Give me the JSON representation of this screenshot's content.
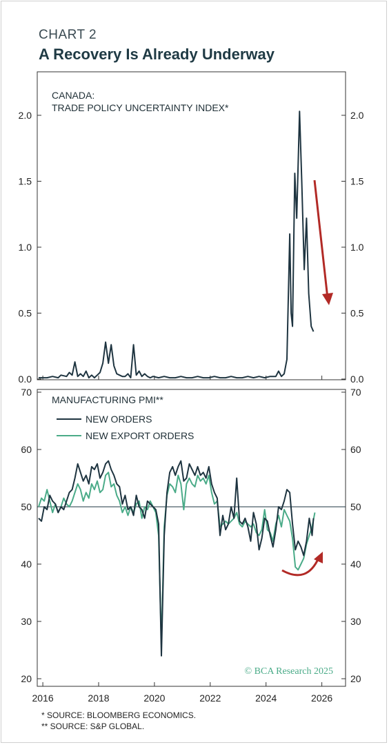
{
  "header": {
    "label": "CHART 2",
    "title": "A Recovery Is Already Underway"
  },
  "footnotes": [
    "*  SOURCE: BLOOMBERG ECONOMICS.",
    "** SOURCE: S&P GLOBAL."
  ],
  "watermark": "© BCA Research 2025",
  "colors": {
    "dark_line": "#1e3440",
    "green_line": "#4aab88",
    "arrow": "#b22a26",
    "axis": "#333333"
  },
  "chart_data": [
    {
      "type": "line",
      "title_lines": [
        "CANADA:",
        "TRADE POLICY UNCERTAINTY INDEX*"
      ],
      "ylim": [
        0,
        2.0
      ],
      "yticks": [
        "0.0",
        "0.5",
        "1.0",
        "1.5",
        "2.0"
      ],
      "xlim": [
        2015.85,
        2026.9
      ],
      "series": [
        {
          "x": [
            2015.9,
            2016.0,
            2016.2,
            2016.4,
            2016.6,
            2016.7,
            2016.9,
            2017.0,
            2017.1,
            2017.2,
            2017.3,
            2017.4,
            2017.5,
            2017.6,
            2017.7,
            2017.8,
            2017.9,
            2018.0,
            2018.1,
            2018.2,
            2018.3,
            2018.4,
            2018.5,
            2018.6,
            2018.7,
            2018.8,
            2018.9,
            2019.0,
            2019.1,
            2019.2,
            2019.3,
            2019.4,
            2019.5,
            2019.6,
            2019.7,
            2019.8,
            2019.9,
            2020.0,
            2020.2,
            2020.4,
            2020.6,
            2020.8,
            2021.0,
            2021.2,
            2021.4,
            2021.6,
            2021.8,
            2022.0,
            2022.2,
            2022.4,
            2022.6,
            2022.8,
            2023.0,
            2023.2,
            2023.4,
            2023.6,
            2023.8,
            2024.0,
            2024.2,
            2024.4,
            2024.5,
            2024.6,
            2024.7,
            2024.8,
            2024.9,
            2024.95,
            2025.0,
            2025.08,
            2025.15,
            2025.25,
            2025.33,
            2025.42,
            2025.5,
            2025.58,
            2025.67,
            2025.75
          ],
          "y": [
            0.01,
            0.01,
            0.01,
            0.02,
            0.01,
            0.03,
            0.02,
            0.05,
            0.03,
            0.13,
            0.02,
            0.04,
            0.02,
            0.06,
            0.01,
            0.03,
            0.01,
            0.03,
            0.05,
            0.12,
            0.28,
            0.12,
            0.26,
            0.1,
            0.04,
            0.03,
            0.02,
            0.02,
            0.04,
            0.01,
            0.26,
            0.03,
            0.06,
            0.02,
            0.04,
            0.02,
            0.01,
            0.02,
            0.01,
            0.02,
            0.01,
            0.01,
            0.02,
            0.01,
            0.01,
            0.02,
            0.01,
            0.01,
            0.02,
            0.01,
            0.01,
            0.02,
            0.01,
            0.01,
            0.02,
            0.01,
            0.02,
            0.01,
            0.02,
            0.02,
            0.06,
            0.02,
            0.04,
            0.15,
            1.1,
            0.5,
            0.4,
            1.56,
            1.22,
            2.03,
            1.5,
            0.83,
            1.22,
            0.65,
            0.4,
            0.36
          ]
        }
      ]
    },
    {
      "type": "line",
      "title": "MANUFACTURING PMI**",
      "ylim": [
        20,
        70
      ],
      "yticks": [
        "20",
        "30",
        "40",
        "50",
        "60",
        "70"
      ],
      "xlim": [
        2015.85,
        2026.9
      ],
      "xticks": [
        "2016",
        "2018",
        "2020",
        "2022",
        "2024",
        "2026"
      ],
      "reference_line": 50,
      "series": [
        {
          "name": "NEW ORDERS",
          "x": [
            2015.9,
            2016.0,
            2016.1,
            2016.2,
            2016.3,
            2016.4,
            2016.5,
            2016.6,
            2016.7,
            2016.8,
            2016.9,
            2017.0,
            2017.1,
            2017.2,
            2017.3,
            2017.4,
            2017.5,
            2017.6,
            2017.7,
            2017.8,
            2017.9,
            2018.0,
            2018.1,
            2018.2,
            2018.3,
            2018.4,
            2018.5,
            2018.6,
            2018.7,
            2018.8,
            2018.9,
            2019.0,
            2019.1,
            2019.2,
            2019.3,
            2019.4,
            2019.5,
            2019.6,
            2019.7,
            2019.8,
            2019.9,
            2020.0,
            2020.1,
            2020.2,
            2020.3,
            2020.4,
            2020.5,
            2020.6,
            2020.7,
            2020.8,
            2020.9,
            2021.0,
            2021.1,
            2021.2,
            2021.3,
            2021.4,
            2021.5,
            2021.6,
            2021.7,
            2021.8,
            2021.9,
            2022.0,
            2022.1,
            2022.2,
            2022.3,
            2022.4,
            2022.5,
            2022.6,
            2022.7,
            2022.8,
            2022.9,
            2023.0,
            2023.1,
            2023.2,
            2023.3,
            2023.4,
            2023.5,
            2023.6,
            2023.7,
            2023.8,
            2023.9,
            2024.0,
            2024.1,
            2024.2,
            2024.3,
            2024.4,
            2024.5,
            2024.6,
            2024.7,
            2024.8,
            2024.9,
            2025.0,
            2025.1,
            2025.2,
            2025.3,
            2025.4,
            2025.5,
            2025.6,
            2025.7,
            2025.75
          ],
          "y": [
            48.0,
            47.5,
            50.0,
            49.5,
            52.0,
            51.0,
            50.5,
            49.0,
            50.0,
            49.5,
            51.0,
            52.5,
            53.0,
            55.0,
            57.5,
            56.0,
            54.5,
            55.5,
            54.0,
            57.0,
            56.5,
            57.5,
            55.0,
            56.0,
            57.5,
            58.0,
            56.5,
            55.5,
            54.0,
            53.5,
            50.5,
            52.0,
            49.5,
            50.0,
            48.5,
            52.0,
            50.0,
            49.5,
            48.0,
            51.0,
            50.5,
            50.0,
            49.5,
            47.0,
            24.0,
            45.0,
            52.5,
            56.0,
            57.0,
            55.5,
            57.0,
            58.0,
            54.5,
            55.0,
            57.5,
            56.5,
            55.5,
            57.0,
            55.5,
            56.0,
            55.0,
            57.0,
            54.0,
            52.5,
            51.5,
            45.0,
            48.5,
            46.0,
            47.0,
            50.0,
            48.0,
            55.0,
            47.5,
            47.0,
            48.0,
            46.5,
            44.0,
            49.0,
            47.0,
            42.5,
            44.5,
            48.0,
            47.5,
            45.0,
            43.0,
            46.0,
            50.0,
            49.5,
            51.0,
            53.0,
            52.5,
            47.0,
            42.5,
            44.0,
            43.0,
            41.5,
            44.0,
            48.0,
            45.0,
            48.0
          ]
        },
        {
          "name": "NEW EXPORT ORDERS",
          "x": [
            2015.9,
            2016.0,
            2016.1,
            2016.2,
            2016.3,
            2016.4,
            2016.5,
            2016.6,
            2016.7,
            2016.8,
            2016.9,
            2017.0,
            2017.1,
            2017.2,
            2017.3,
            2017.4,
            2017.5,
            2017.6,
            2017.7,
            2017.8,
            2017.9,
            2018.0,
            2018.1,
            2018.2,
            2018.3,
            2018.4,
            2018.5,
            2018.6,
            2018.7,
            2018.8,
            2018.9,
            2019.0,
            2019.1,
            2019.2,
            2019.3,
            2019.4,
            2019.5,
            2019.6,
            2019.7,
            2019.8,
            2019.9,
            2020.0,
            2020.1,
            2020.2,
            2020.3,
            2020.4,
            2020.5,
            2020.6,
            2020.7,
            2020.8,
            2020.9,
            2021.0,
            2021.1,
            2021.2,
            2021.3,
            2021.4,
            2021.5,
            2021.6,
            2021.7,
            2021.8,
            2021.9,
            2022.0,
            2022.1,
            2022.2,
            2022.3,
            2022.4,
            2022.5,
            2022.6,
            2022.7,
            2022.8,
            2022.9,
            2023.0,
            2023.1,
            2023.2,
            2023.3,
            2023.4,
            2023.5,
            2023.6,
            2023.7,
            2023.8,
            2023.9,
            2024.0,
            2024.1,
            2024.2,
            2024.3,
            2024.4,
            2024.5,
            2024.6,
            2024.7,
            2024.8,
            2024.9,
            2025.0,
            2025.1,
            2025.2,
            2025.3,
            2025.4,
            2025.5,
            2025.6,
            2025.7,
            2025.8
          ],
          "y": [
            50.0,
            51.5,
            51.0,
            53.0,
            51.0,
            49.0,
            50.5,
            49.0,
            50.0,
            51.5,
            50.5,
            50.0,
            51.0,
            52.5,
            54.0,
            53.0,
            51.0,
            52.5,
            51.5,
            54.0,
            53.0,
            54.5,
            52.5,
            53.0,
            55.5,
            56.0,
            53.5,
            54.0,
            52.0,
            51.0,
            49.0,
            50.0,
            48.5,
            50.0,
            49.0,
            50.5,
            51.0,
            48.0,
            50.0,
            49.5,
            51.0,
            50.0,
            49.0,
            45.0,
            26.0,
            46.5,
            52.0,
            54.0,
            53.5,
            52.5,
            55.5,
            54.0,
            49.5,
            54.0,
            55.0,
            54.0,
            53.5,
            55.5,
            54.5,
            55.0,
            54.0,
            55.5,
            52.5,
            50.5,
            51.0,
            46.5,
            47.0,
            47.5,
            47.0,
            47.5,
            48.0,
            49.0,
            47.0,
            46.5,
            47.5,
            47.0,
            46.5,
            47.0,
            45.5,
            45.0,
            46.0,
            49.5,
            46.0,
            45.5,
            44.0,
            47.0,
            48.5,
            46.5,
            49.5,
            48.5,
            47.5,
            44.5,
            39.5,
            39.0,
            40.0,
            41.0,
            43.5,
            45.0,
            46.5,
            49.0
          ]
        }
      ]
    }
  ]
}
